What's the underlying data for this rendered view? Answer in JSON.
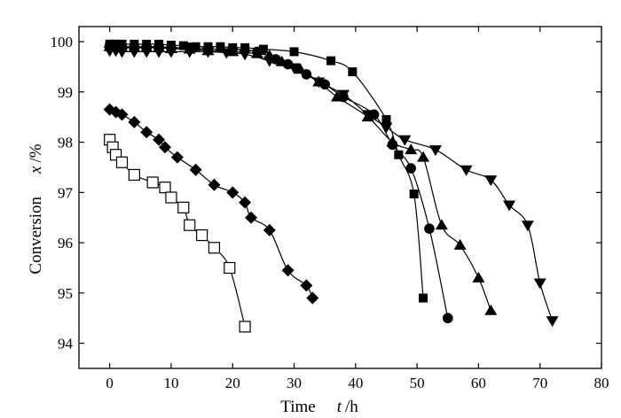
{
  "chart_data": {
    "type": "scatter",
    "title": "",
    "xlabel": "Time",
    "xlabel_var": "t",
    "xlabel_unit": "/h",
    "ylabel": "Conversion",
    "ylabel_var": "x",
    "ylabel_unit": "/%",
    "xlim": [
      -5,
      80
    ],
    "ylim": [
      93.5,
      100.3
    ],
    "xticks": [
      0,
      10,
      20,
      30,
      40,
      50,
      60,
      70,
      80
    ],
    "yticks": [
      94,
      95,
      96,
      97,
      98,
      99,
      100
    ],
    "grid": false,
    "legend": "none",
    "line_color": "#000000",
    "series": [
      {
        "marker": "square-filled",
        "x": [
          0,
          0.5,
          1,
          2,
          4,
          6,
          8,
          10,
          12,
          14,
          16,
          18,
          20,
          22,
          25,
          30,
          36,
          39.5,
          45,
          47,
          49.5,
          51
        ],
        "y": [
          99.95,
          99.95,
          99.95,
          99.95,
          99.95,
          99.95,
          99.95,
          99.93,
          99.92,
          99.9,
          99.9,
          99.9,
          99.88,
          99.88,
          99.85,
          99.8,
          99.62,
          99.4,
          98.45,
          97.75,
          96.97,
          94.9
        ]
      },
      {
        "marker": "circle-filled",
        "x": [
          0,
          1,
          2,
          4,
          6,
          8,
          10,
          13,
          16,
          20,
          24,
          27,
          29,
          32,
          35,
          38,
          43,
          46,
          49,
          52,
          55
        ],
        "y": [
          99.92,
          99.92,
          99.9,
          99.9,
          99.9,
          99.9,
          99.88,
          99.88,
          99.85,
          99.85,
          99.8,
          99.65,
          99.55,
          99.35,
          99.15,
          98.9,
          98.55,
          97.95,
          97.48,
          96.28,
          94.5
        ]
      },
      {
        "marker": "triangle-up-filled",
        "x": [
          0,
          1,
          2,
          4,
          6,
          8,
          10,
          13,
          16,
          20,
          24,
          26,
          28,
          31,
          34,
          37,
          42,
          46,
          49,
          51,
          54,
          57,
          60,
          62
        ],
        "y": [
          99.9,
          99.9,
          99.88,
          99.88,
          99.88,
          99.88,
          99.86,
          99.85,
          99.82,
          99.8,
          99.76,
          99.72,
          99.6,
          99.45,
          99.2,
          98.9,
          98.5,
          98.0,
          97.85,
          97.7,
          96.35,
          95.95,
          95.3,
          94.65
        ]
      },
      {
        "marker": "triangle-down-filled",
        "x": [
          0,
          1,
          2,
          4,
          6,
          8,
          10,
          13,
          16,
          19,
          22,
          26,
          30,
          34,
          38,
          42,
          45,
          48,
          53,
          58,
          62,
          65,
          68,
          70,
          72
        ],
        "y": [
          99.82,
          99.82,
          99.8,
          99.8,
          99.8,
          99.8,
          99.8,
          99.8,
          99.8,
          99.78,
          99.75,
          99.62,
          99.48,
          99.2,
          98.95,
          98.55,
          98.3,
          98.05,
          97.85,
          97.45,
          97.25,
          96.75,
          96.35,
          95.2,
          94.45
        ]
      },
      {
        "marker": "diamond-filled",
        "x": [
          0,
          1,
          2,
          4,
          6,
          8,
          9,
          11,
          14,
          17,
          20,
          22,
          23,
          26,
          29,
          32,
          33
        ],
        "y": [
          98.65,
          98.6,
          98.55,
          98.4,
          98.2,
          98.05,
          97.9,
          97.7,
          97.45,
          97.15,
          97.0,
          96.8,
          96.5,
          96.25,
          95.45,
          95.15,
          94.9
        ]
      },
      {
        "marker": "square-open",
        "x": [
          0,
          0.5,
          1,
          2,
          4,
          7,
          9,
          10,
          12,
          13,
          15,
          17,
          19.5,
          22
        ],
        "y": [
          98.05,
          97.9,
          97.75,
          97.6,
          97.35,
          97.2,
          97.1,
          96.9,
          96.7,
          96.35,
          96.15,
          95.9,
          95.5,
          94.33
        ]
      }
    ]
  }
}
